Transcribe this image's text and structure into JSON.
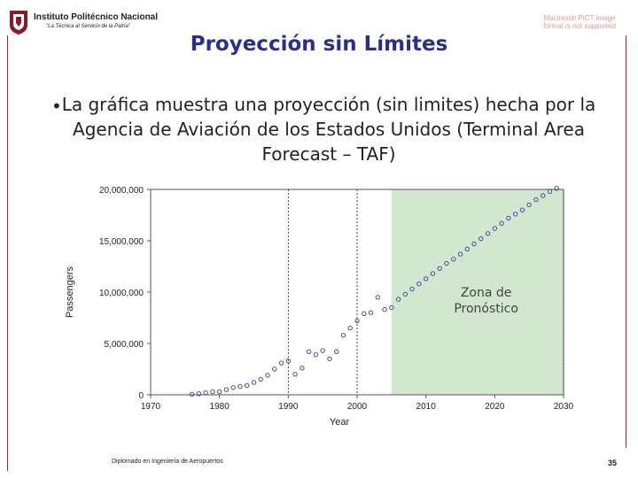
{
  "header": {
    "institution": "Instituto Politécnico Nacional",
    "motto": "\"La Técnica al Servicio de la Patria\"",
    "corner_note": "Macintosh PICT image format is not supported"
  },
  "slide": {
    "title": "Proyección sin Límites",
    "bullet": "La gráfica muestra una proyección (sin limites) hecha por la Agencia de Aviación de los Estados Unidos (Terminal Area Forecast – TAF)"
  },
  "chart_data": {
    "type": "scatter",
    "xlabel": "Year",
    "ylabel": "Passengers",
    "xlim": [
      1970,
      2030
    ],
    "ylim": [
      0,
      20000000
    ],
    "x_ticks": [
      1970,
      1980,
      1990,
      2000,
      2010,
      2020,
      2030
    ],
    "y_ticks": [
      0,
      5000000,
      10000000,
      15000000,
      20000000
    ],
    "x_tick_labels": [
      "1970",
      "1980",
      "1990",
      "2000",
      "2010",
      "2020",
      "2030"
    ],
    "y_tick_labels": [
      "0",
      "5,000,000",
      "10,000,000",
      "15,000,000",
      "20,000,000"
    ],
    "vertical_dashed_lines": [
      1990,
      2000
    ],
    "forecast_zone": {
      "label_line1": "Zona de",
      "label_line2": "Pronóstico",
      "from": 2005,
      "to": 2030,
      "color": "#d3e6d0"
    },
    "grid": false,
    "series": [
      {
        "x": [
          1976,
          1977,
          1978,
          1979,
          1980,
          1981,
          1982,
          1983,
          1984,
          1985,
          1986,
          1987,
          1988,
          1989,
          1990,
          1991,
          1992,
          1993,
          1994,
          1995,
          1996,
          1997,
          1998,
          1999,
          2000,
          2001,
          2002,
          2003,
          2004,
          2005,
          2006,
          2007,
          2008,
          2009,
          2010,
          2011,
          2012,
          2013,
          2014,
          2015,
          2016,
          2017,
          2018,
          2019,
          2020,
          2021,
          2022,
          2023,
          2024,
          2025,
          2026,
          2027,
          2028,
          2029
        ],
        "y": [
          50000,
          100000,
          200000,
          300000,
          300000,
          500000,
          700000,
          800000,
          900000,
          1200000,
          1500000,
          1900000,
          2500000,
          3100000,
          3300000,
          2000000,
          2600000,
          4200000,
          3900000,
          4300000,
          3500000,
          4200000,
          5800000,
          6500000,
          7200000,
          7900000,
          8000000,
          9500000,
          8300000,
          8500000,
          9300000,
          9800000,
          10300000,
          10800000,
          11300000,
          11800000,
          12300000,
          12800000,
          13200000,
          13700000,
          14200000,
          14700000,
          15200000,
          15700000,
          16200000,
          16700000,
          17200000,
          17600000,
          18000000,
          18500000,
          19000000,
          19400000,
          19800000,
          20100000
        ]
      }
    ]
  },
  "footer": {
    "text": "Diplomado en Ingeniería de Aeropuertos",
    "page": "35"
  }
}
